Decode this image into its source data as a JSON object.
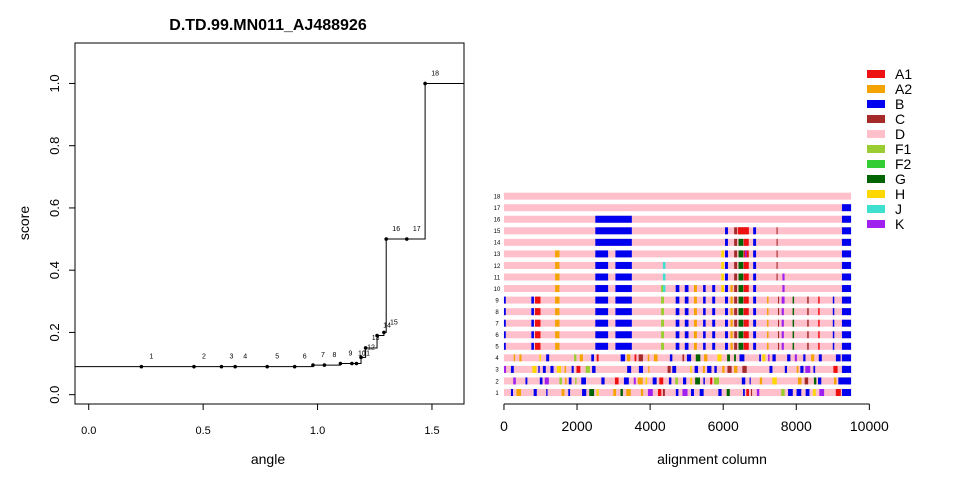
{
  "chart_data": [
    {
      "type": "line",
      "title": "D.TD.99.MN011_AJ488926",
      "xlabel": "angle",
      "ylabel": "score",
      "xlim": [
        -0.06,
        1.64
      ],
      "ylim": [
        -0.03,
        1.13
      ],
      "xticks": [
        "0.0",
        "0.5",
        "1.0",
        "1.5"
      ],
      "yticks": [
        "0.0",
        "0.2",
        "0.4",
        "0.6",
        "0.8",
        "1.0"
      ],
      "series": [
        {
          "points": [
            {
              "label": "1",
              "x": 0.23,
              "y": 0.09
            },
            {
              "label": "2",
              "x": 0.46,
              "y": 0.09
            },
            {
              "label": "3",
              "x": 0.58,
              "y": 0.09
            },
            {
              "label": "4",
              "x": 0.64,
              "y": 0.09
            },
            {
              "label": "5",
              "x": 0.78,
              "y": 0.09
            },
            {
              "label": "6",
              "x": 0.9,
              "y": 0.09
            },
            {
              "label": "7",
              "x": 0.98,
              "y": 0.095
            },
            {
              "label": "8",
              "x": 1.03,
              "y": 0.095
            },
            {
              "label": "9",
              "x": 1.1,
              "y": 0.1
            },
            {
              "label": "10",
              "x": 1.15,
              "y": 0.1
            },
            {
              "label": "11",
              "x": 1.17,
              "y": 0.1
            },
            {
              "label": "12",
              "x": 1.19,
              "y": 0.12
            },
            {
              "label": "13",
              "x": 1.21,
              "y": 0.15
            },
            {
              "label": "14",
              "x": 1.26,
              "y": 0.19
            },
            {
              "label": "15",
              "x": 1.29,
              "y": 0.2
            },
            {
              "label": "16",
              "x": 1.3,
              "y": 0.5
            },
            {
              "label": "17",
              "x": 1.39,
              "y": 0.5
            },
            {
              "label": "18",
              "x": 1.47,
              "y": 1.0
            }
          ]
        }
      ],
      "grid": false,
      "legend": "none"
    },
    {
      "type": "bar",
      "subtype": "alignment-mosaic",
      "xlabel": "alignment column",
      "xlim": [
        -300,
        10100
      ],
      "xticks": [
        "0",
        "2000",
        "4000",
        "6000",
        "8000",
        "10000"
      ],
      "rows": [
        "1",
        "2",
        "3",
        "4",
        "5",
        "6",
        "7",
        "8",
        "9",
        "10",
        "11",
        "12",
        "13",
        "14",
        "15",
        "16",
        "17",
        "18"
      ],
      "legend": "top-right",
      "legend_entries": [
        {
          "name": "A1",
          "color": "#ee1111"
        },
        {
          "name": "A2",
          "color": "#f5a300"
        },
        {
          "name": "B",
          "color": "#0000ee"
        },
        {
          "name": "C",
          "color": "#a52a2a"
        },
        {
          "name": "D",
          "color": "#ffc0cb"
        },
        {
          "name": "F1",
          "color": "#9acd32"
        },
        {
          "name": "F2",
          "color": "#32cd32"
        },
        {
          "name": "G",
          "color": "#006400"
        },
        {
          "name": "H",
          "color": "#ffd700"
        },
        {
          "name": "J",
          "color": "#40e0d0"
        },
        {
          "name": "K",
          "color": "#a020f0"
        }
      ]
    }
  ]
}
